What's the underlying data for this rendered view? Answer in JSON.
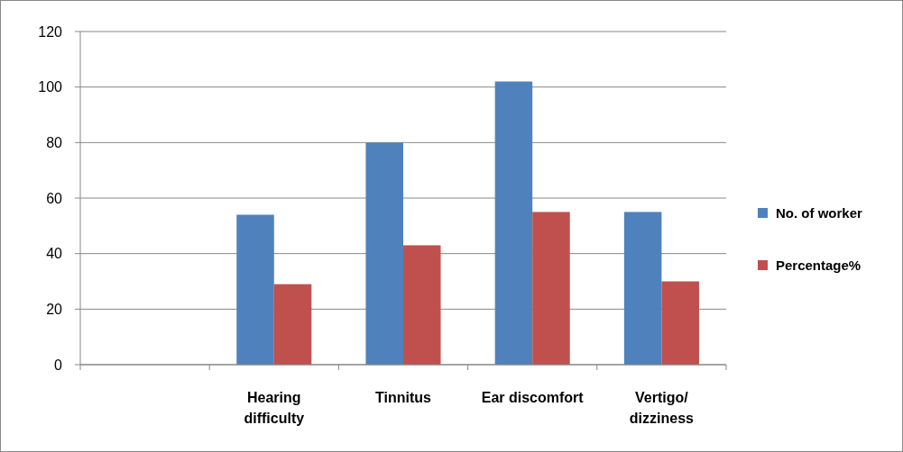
{
  "chart_data": {
    "type": "bar",
    "categories": [
      null,
      "Hearing difficulty",
      "Tinnitus",
      "Ear discomfort",
      "Vertigo/ dizziness"
    ],
    "series": [
      {
        "name": "No. of worker",
        "color": "#4f81bd",
        "values": [
          null,
          54,
          80,
          102,
          55
        ]
      },
      {
        "name": "Percentage%",
        "color": "#c0504d",
        "values": [
          null,
          29,
          43,
          55,
          30
        ]
      }
    ],
    "ylim": [
      0,
      120
    ],
    "yticks": [
      0,
      20,
      40,
      60,
      80,
      100,
      120
    ],
    "grid": "y",
    "legend": "right"
  }
}
